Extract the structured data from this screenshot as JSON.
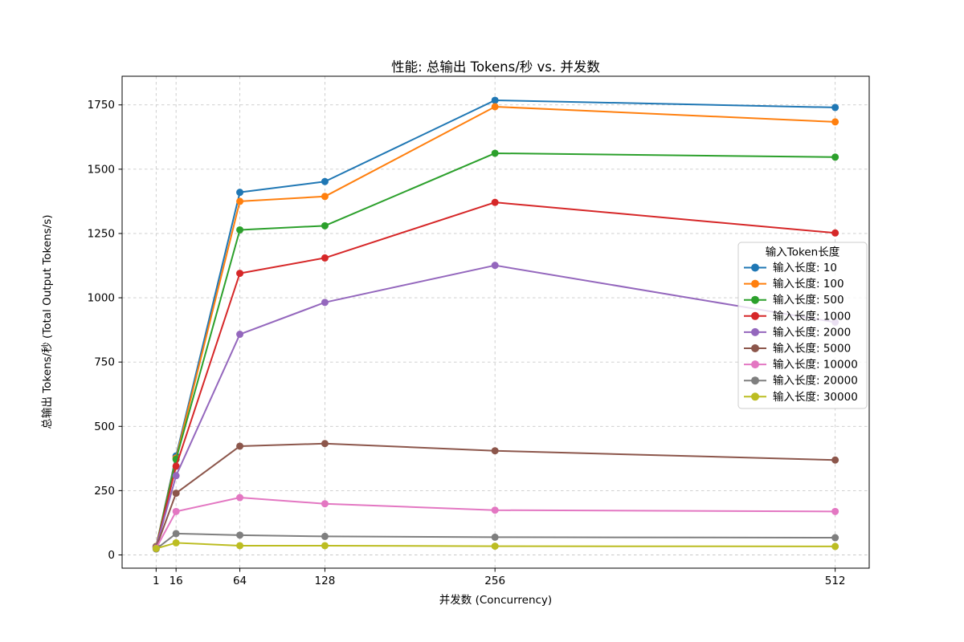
{
  "chart_data": {
    "type": "line",
    "title": "性能: 总输出 Tokens/秒 vs. 并发数",
    "xlabel": "并发数 (Concurrency)",
    "ylabel": "总输出 Tokens/秒 (Total Output Tokens/s)",
    "x": [
      1,
      16,
      64,
      128,
      256,
      512
    ],
    "xticks": [
      1,
      16,
      64,
      128,
      256,
      512
    ],
    "yticks": [
      0,
      250,
      500,
      750,
      1000,
      1250,
      1500,
      1750
    ],
    "xlim": [
      -24.6,
      537.6
    ],
    "ylim": [
      -51.5,
      1861.5
    ],
    "grid": true,
    "grid_color": "#c9c9c9",
    "background_color": "#ffffff",
    "legend": {
      "title": "输入Token长度",
      "position": "center-right"
    },
    "series": [
      {
        "name": "输入长度: 10",
        "color": "#1f77b4",
        "values": [
          33,
          385,
          1410,
          1452,
          1768,
          1740
        ]
      },
      {
        "name": "输入长度: 100",
        "color": "#ff7f0e",
        "values": [
          33,
          377,
          1375,
          1394,
          1743,
          1684
        ]
      },
      {
        "name": "输入长度: 500",
        "color": "#2ca02c",
        "values": [
          32,
          372,
          1264,
          1280,
          1562,
          1547
        ]
      },
      {
        "name": "输入长度: 1000",
        "color": "#d62728",
        "values": [
          31,
          345,
          1095,
          1155,
          1371,
          1252
        ]
      },
      {
        "name": "输入长度: 2000",
        "color": "#9467bd",
        "values": [
          30,
          308,
          858,
          982,
          1126,
          905
        ]
      },
      {
        "name": "输入长度: 5000",
        "color": "#8c564b",
        "values": [
          28,
          240,
          423,
          433,
          405,
          369
        ]
      },
      {
        "name": "输入长度: 10000",
        "color": "#e377c2",
        "values": [
          26,
          169,
          223,
          199,
          174,
          169
        ]
      },
      {
        "name": "输入长度: 20000",
        "color": "#7f7f7f",
        "values": [
          23,
          83,
          77,
          72,
          69,
          67
        ]
      },
      {
        "name": "输入长度: 30000",
        "color": "#bcbd22",
        "values": [
          25,
          47,
          36,
          36,
          34,
          33
        ]
      }
    ]
  }
}
